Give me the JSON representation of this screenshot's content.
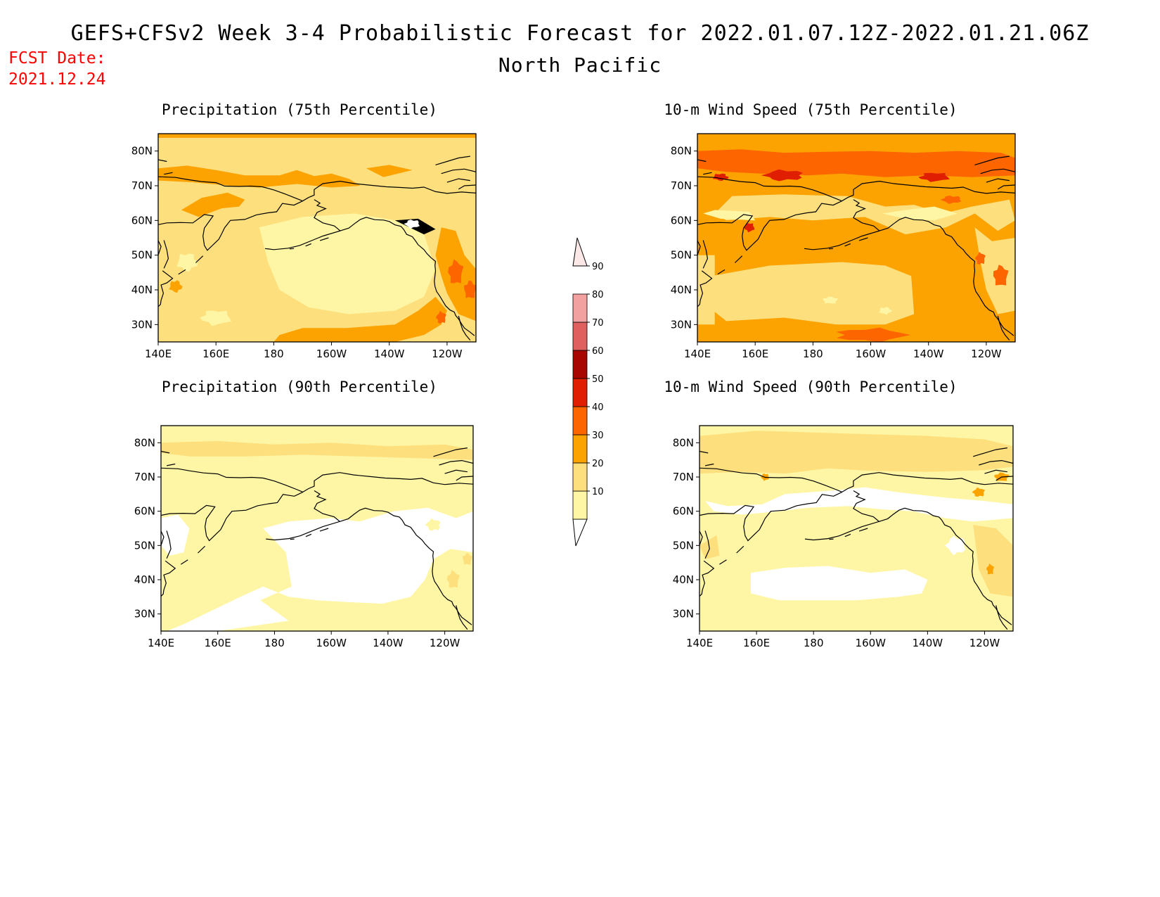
{
  "header": {
    "title": "GEFS+CFSv2 Week 3-4 Probabilistic Forecast for 2022.01.07.12Z-2022.01.21.06Z",
    "subtitle": "North Pacific",
    "fcst_label": "FCST Date:",
    "fcst_date": "2021.12.24"
  },
  "panels": [
    {
      "id": "precip-75",
      "title": "Precipitation (75th Percentile)"
    },
    {
      "id": "wind-75",
      "title": "10-m Wind Speed (75th Percentile)"
    },
    {
      "id": "precip-90",
      "title": "Precipitation (90th Percentile)"
    },
    {
      "id": "wind-90",
      "title": "10-m Wind Speed (90th Percentile)"
    }
  ],
  "axes": {
    "lat_labels": [
      "80N",
      "70N",
      "60N",
      "50N",
      "40N",
      "30N"
    ],
    "lat_values": [
      80,
      70,
      60,
      50,
      40,
      30
    ],
    "lat_range": [
      25,
      85
    ],
    "lon_labels": [
      "140E",
      "160E",
      "180",
      "160W",
      "140W",
      "120W"
    ],
    "lon_values": [
      140,
      160,
      180,
      200,
      220,
      240
    ],
    "lon_range": [
      140,
      250
    ]
  },
  "colorbar": {
    "levels": [
      "10",
      "20",
      "30",
      "40",
      "50",
      "60",
      "70",
      "80",
      "90"
    ],
    "colors": [
      "#ffffff",
      "#fff6a5",
      "#fde07d",
      "#fca201",
      "#fd6501",
      "#e01e01",
      "#a80600",
      "#e06060",
      "#f3a0a0",
      "#fde8e8"
    ]
  },
  "map_colors": {
    "white": "#ffffff",
    "c10": "#fff6a5",
    "c20": "#fde07d",
    "c30": "#fca201",
    "c40": "#fd6501",
    "c50": "#e01e01",
    "coast": "#000000"
  }
}
